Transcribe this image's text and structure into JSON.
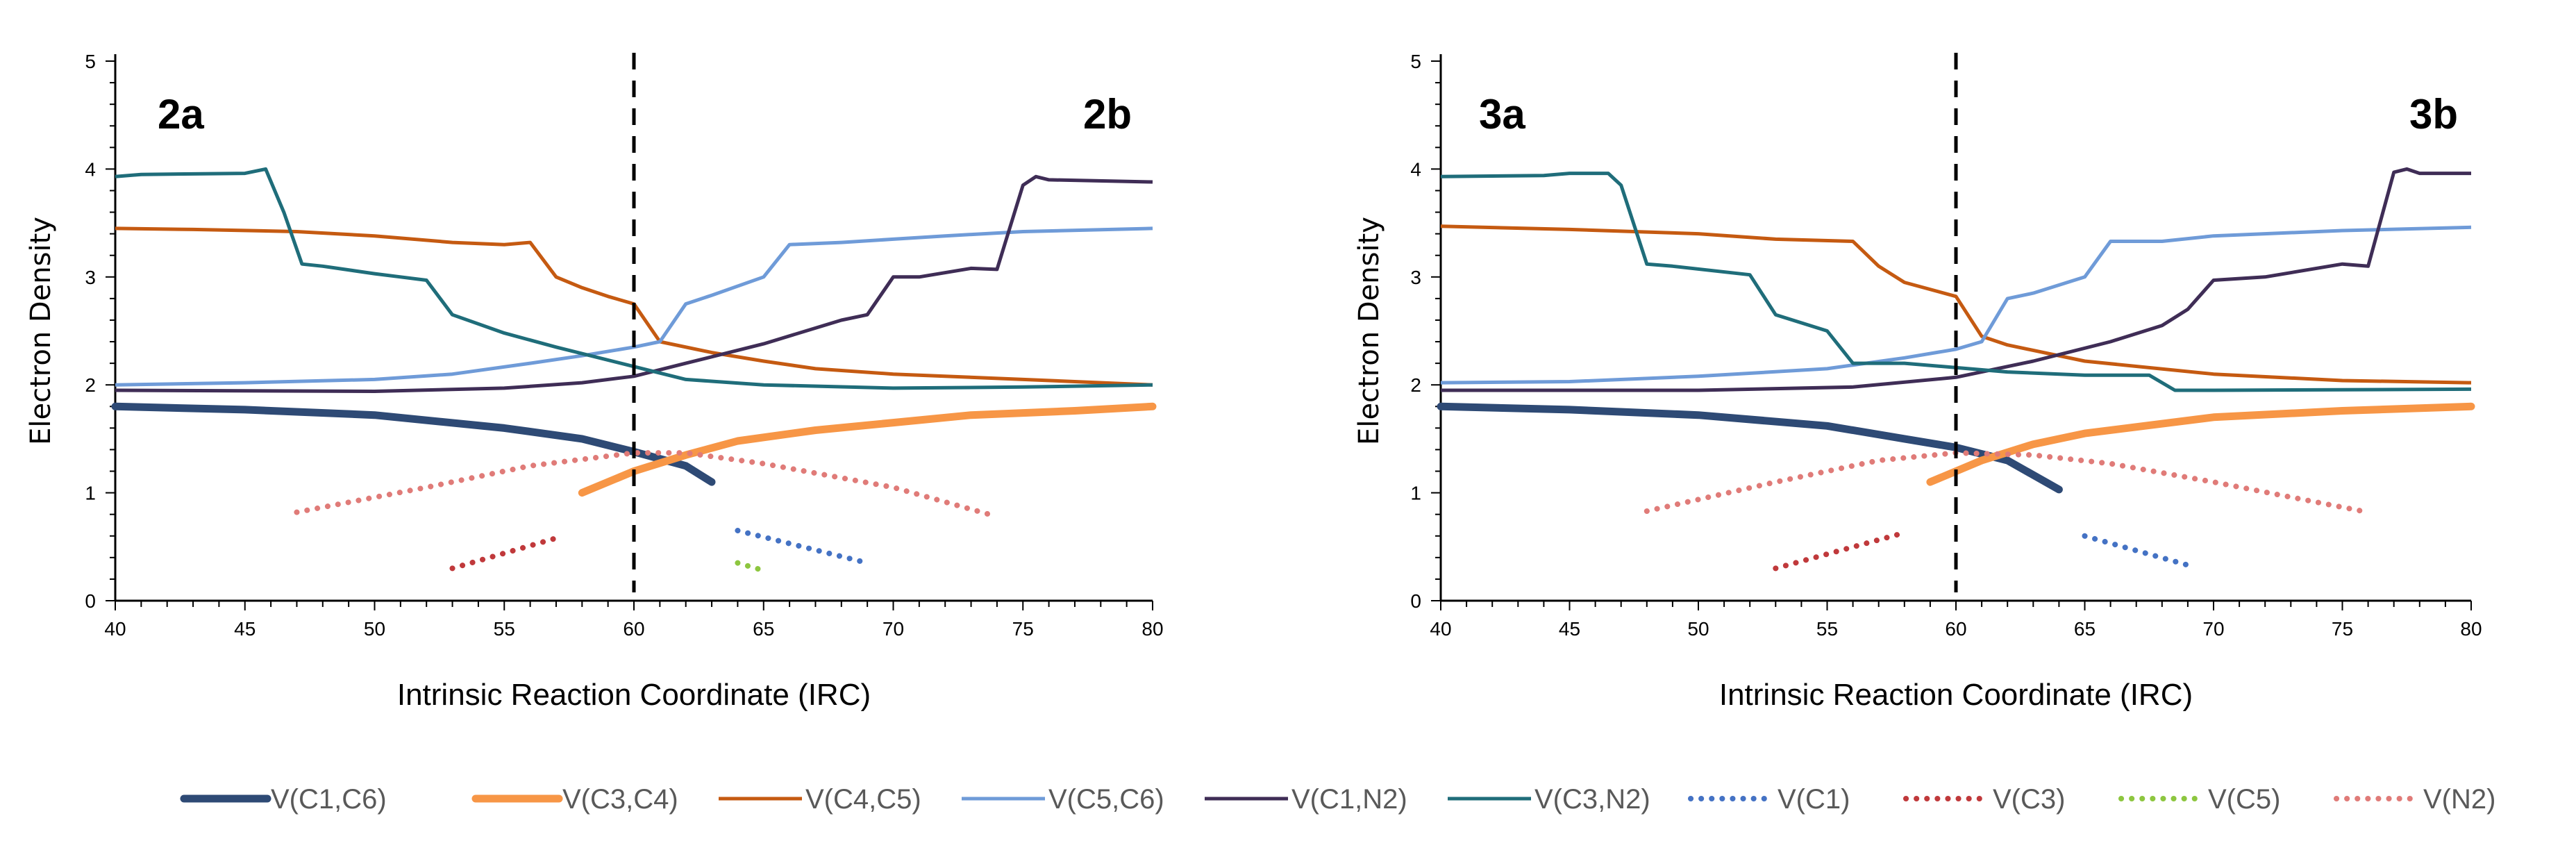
{
  "chart_data": [
    {
      "type": "line",
      "panel_labels": [
        "2a",
        "2b"
      ],
      "xlabel": "Intrinsic Reaction Coordinate  (IRC)",
      "ylabel": "Electron Density",
      "xlim": [
        40,
        80
      ],
      "ylim": [
        0,
        5
      ],
      "xticks": [
        "40",
        "45",
        "50",
        "55",
        "60",
        "65",
        "70",
        "75",
        "80"
      ],
      "yticks": [
        "0",
        "1",
        "2",
        "3",
        "4",
        "5"
      ],
      "vline_x": 60,
      "grid": false,
      "series": [
        {
          "name": "V(C1,C6)",
          "points": [
            [
              40,
              1.8
            ],
            [
              45,
              1.77
            ],
            [
              50,
              1.72
            ],
            [
              55,
              1.6
            ],
            [
              58,
              1.5
            ],
            [
              60,
              1.38
            ],
            [
              62,
              1.25
            ],
            [
              63,
              1.1
            ]
          ]
        },
        {
          "name": "V(C3,C4)",
          "points": [
            [
              58,
              1.0
            ],
            [
              60,
              1.2
            ],
            [
              62,
              1.35
            ],
            [
              64,
              1.48
            ],
            [
              67,
              1.58
            ],
            [
              70,
              1.65
            ],
            [
              73,
              1.72
            ],
            [
              77,
              1.76
            ],
            [
              80,
              1.8
            ]
          ]
        },
        {
          "name": "V(C4,C5)",
          "points": [
            [
              40,
              3.45
            ],
            [
              43,
              3.44
            ],
            [
              47,
              3.42
            ],
            [
              50,
              3.38
            ],
            [
              53,
              3.32
            ],
            [
              55,
              3.3
            ],
            [
              56,
              3.32
            ],
            [
              57,
              3.0
            ],
            [
              58,
              2.9
            ],
            [
              59,
              2.82
            ],
            [
              60,
              2.75
            ],
            [
              61,
              2.4
            ],
            [
              63,
              2.3
            ],
            [
              65,
              2.22
            ],
            [
              67,
              2.15
            ],
            [
              70,
              2.1
            ],
            [
              75,
              2.05
            ],
            [
              80,
              2.0
            ]
          ]
        },
        {
          "name": "V(C5,C6)",
          "points": [
            [
              40,
              2.0
            ],
            [
              45,
              2.02
            ],
            [
              50,
              2.05
            ],
            [
              53,
              2.1
            ],
            [
              56,
              2.2
            ],
            [
              58,
              2.27
            ],
            [
              60,
              2.35
            ],
            [
              61,
              2.4
            ],
            [
              62,
              2.75
            ],
            [
              63,
              2.83
            ],
            [
              65,
              3.0
            ],
            [
              66,
              3.3
            ],
            [
              68,
              3.32
            ],
            [
              70,
              3.35
            ],
            [
              72,
              3.38
            ],
            [
              75,
              3.42
            ],
            [
              80,
              3.45
            ]
          ]
        },
        {
          "name": "V(C1,N2)",
          "points": [
            [
              40,
              1.95
            ],
            [
              50,
              1.94
            ],
            [
              55,
              1.97
            ],
            [
              58,
              2.02
            ],
            [
              60,
              2.08
            ],
            [
              62,
              2.2
            ],
            [
              65,
              2.38
            ],
            [
              68,
              2.6
            ],
            [
              69,
              2.65
            ],
            [
              70,
              3.0
            ],
            [
              71,
              3.0
            ],
            [
              73,
              3.08
            ],
            [
              74,
              3.07
            ],
            [
              75,
              3.85
            ],
            [
              75.5,
              3.93
            ],
            [
              76,
              3.9
            ],
            [
              80,
              3.88
            ]
          ]
        },
        {
          "name": "V(C3,N2)",
          "points": [
            [
              40,
              3.93
            ],
            [
              41,
              3.95
            ],
            [
              45,
              3.96
            ],
            [
              45.8,
              4.0
            ],
            [
              46.5,
              3.6
            ],
            [
              47.2,
              3.12
            ],
            [
              48,
              3.1
            ],
            [
              50,
              3.03
            ],
            [
              51,
              3.0
            ],
            [
              52,
              2.97
            ],
            [
              53,
              2.65
            ],
            [
              55,
              2.48
            ],
            [
              57,
              2.35
            ],
            [
              60,
              2.17
            ],
            [
              62,
              2.05
            ],
            [
              65,
              2.0
            ],
            [
              70,
              1.97
            ],
            [
              75,
              1.98
            ],
            [
              80,
              2.0
            ]
          ]
        },
        {
          "name": "V(C1)",
          "points": [
            [
              64,
              0.65
            ],
            [
              69,
              0.35
            ]
          ]
        },
        {
          "name": "V(C3)",
          "points": [
            [
              53,
              0.3
            ],
            [
              57,
              0.58
            ]
          ]
        },
        {
          "name": "V(C5)",
          "points": [
            [
              64,
              0.35
            ],
            [
              65,
              0.28
            ]
          ]
        },
        {
          "name": "V(N2)",
          "points": [
            [
              47,
              0.82
            ],
            [
              52,
              1.05
            ],
            [
              56,
              1.25
            ],
            [
              60,
              1.37
            ],
            [
              62,
              1.37
            ],
            [
              65,
              1.27
            ],
            [
              70,
              1.05
            ],
            [
              74,
              0.78
            ]
          ]
        }
      ]
    },
    {
      "type": "line",
      "panel_labels": [
        "3a",
        "3b"
      ],
      "xlabel": "Intrinsic Reaction Coordinate  (IRC)",
      "ylabel": "Electron Density",
      "xlim": [
        40,
        80
      ],
      "ylim": [
        0,
        5
      ],
      "xticks": [
        "40",
        "45",
        "50",
        "55",
        "60",
        "65",
        "70",
        "75",
        "80"
      ],
      "yticks": [
        "0",
        "1",
        "2",
        "3",
        "4",
        "5"
      ],
      "vline_x": 60,
      "grid": false,
      "series": [
        {
          "name": "V(C1,C6)",
          "points": [
            [
              40,
              1.8
            ],
            [
              45,
              1.77
            ],
            [
              50,
              1.72
            ],
            [
              55,
              1.62
            ],
            [
              58,
              1.5
            ],
            [
              60,
              1.42
            ],
            [
              62,
              1.3
            ],
            [
              64,
              1.03
            ]
          ]
        },
        {
          "name": "V(C3,C4)",
          "points": [
            [
              59,
              1.1
            ],
            [
              61,
              1.3
            ],
            [
              63,
              1.45
            ],
            [
              65,
              1.55
            ],
            [
              70,
              1.7
            ],
            [
              75,
              1.76
            ],
            [
              80,
              1.8
            ]
          ]
        },
        {
          "name": "V(C4,C5)",
          "points": [
            [
              40,
              3.47
            ],
            [
              45,
              3.44
            ],
            [
              50,
              3.4
            ],
            [
              53,
              3.35
            ],
            [
              56,
              3.33
            ],
            [
              57,
              3.1
            ],
            [
              58,
              2.95
            ],
            [
              60,
              2.82
            ],
            [
              61,
              2.45
            ],
            [
              62,
              2.37
            ],
            [
              65,
              2.22
            ],
            [
              70,
              2.1
            ],
            [
              75,
              2.04
            ],
            [
              80,
              2.02
            ]
          ]
        },
        {
          "name": "V(C5,C6)",
          "points": [
            [
              40,
              2.02
            ],
            [
              45,
              2.03
            ],
            [
              50,
              2.08
            ],
            [
              55,
              2.15
            ],
            [
              58,
              2.25
            ],
            [
              60,
              2.33
            ],
            [
              61,
              2.4
            ],
            [
              62,
              2.8
            ],
            [
              63,
              2.85
            ],
            [
              65,
              3.0
            ],
            [
              66,
              3.33
            ],
            [
              68,
              3.33
            ],
            [
              70,
              3.38
            ],
            [
              75,
              3.43
            ],
            [
              80,
              3.46
            ]
          ]
        },
        {
          "name": "V(C1,N2)",
          "points": [
            [
              40,
              1.95
            ],
            [
              50,
              1.95
            ],
            [
              56,
              1.98
            ],
            [
              60,
              2.07
            ],
            [
              63,
              2.22
            ],
            [
              66,
              2.4
            ],
            [
              68,
              2.55
            ],
            [
              69,
              2.7
            ],
            [
              70,
              2.97
            ],
            [
              72,
              3.0
            ],
            [
              75,
              3.12
            ],
            [
              76,
              3.1
            ],
            [
              77,
              3.97
            ],
            [
              77.5,
              4.0
            ],
            [
              78,
              3.96
            ],
            [
              80,
              3.96
            ]
          ]
        },
        {
          "name": "V(C3,N2)",
          "points": [
            [
              40,
              3.93
            ],
            [
              44,
              3.94
            ],
            [
              45,
              3.96
            ],
            [
              46.5,
              3.96
            ],
            [
              47,
              3.85
            ],
            [
              48,
              3.12
            ],
            [
              49,
              3.1
            ],
            [
              52,
              3.02
            ],
            [
              53,
              2.65
            ],
            [
              55,
              2.5
            ],
            [
              56,
              2.2
            ],
            [
              58,
              2.2
            ],
            [
              62,
              2.12
            ],
            [
              65,
              2.09
            ],
            [
              67.5,
              2.09
            ],
            [
              68.5,
              1.95
            ],
            [
              70,
              1.95
            ],
            [
              80,
              1.96
            ]
          ]
        },
        {
          "name": "V(C1)",
          "points": [
            [
              65,
              0.6
            ],
            [
              69,
              0.33
            ]
          ]
        },
        {
          "name": "V(C3)",
          "points": [
            [
              53,
              0.3
            ],
            [
              58,
              0.63
            ]
          ]
        },
        {
          "name": "V(N2)",
          "points": [
            [
              48,
              0.83
            ],
            [
              53,
              1.1
            ],
            [
              57,
              1.3
            ],
            [
              60,
              1.37
            ],
            [
              63,
              1.35
            ],
            [
              66,
              1.27
            ],
            [
              70,
              1.1
            ],
            [
              76,
              0.82
            ]
          ]
        }
      ]
    }
  ],
  "legend": {
    "placement": "bottom",
    "entries": [
      {
        "name": "V(C1,C6)",
        "color": "#2e4a75",
        "style": "thick"
      },
      {
        "name": "V(C3,C4)",
        "color": "#f79646",
        "style": "thick"
      },
      {
        "name": "V(C4,C5)",
        "color": "#c55a11",
        "style": "solid"
      },
      {
        "name": "V(C5,C6)",
        "color": "#6f9bd8",
        "style": "solid"
      },
      {
        "name": "V(C1,N2)",
        "color": "#3f2d56",
        "style": "solid"
      },
      {
        "name": "V(C3,N2)",
        "color": "#1f6d7a",
        "style": "solid"
      },
      {
        "name": "V(C1)",
        "color": "#4472c4",
        "style": "dotted"
      },
      {
        "name": "V(C3)",
        "color": "#c0393b",
        "style": "dotted"
      },
      {
        "name": "V(C5)",
        "color": "#8dc63f",
        "style": "dotted"
      },
      {
        "name": "V(N2)",
        "color": "#e07b78",
        "style": "dotted"
      }
    ]
  }
}
